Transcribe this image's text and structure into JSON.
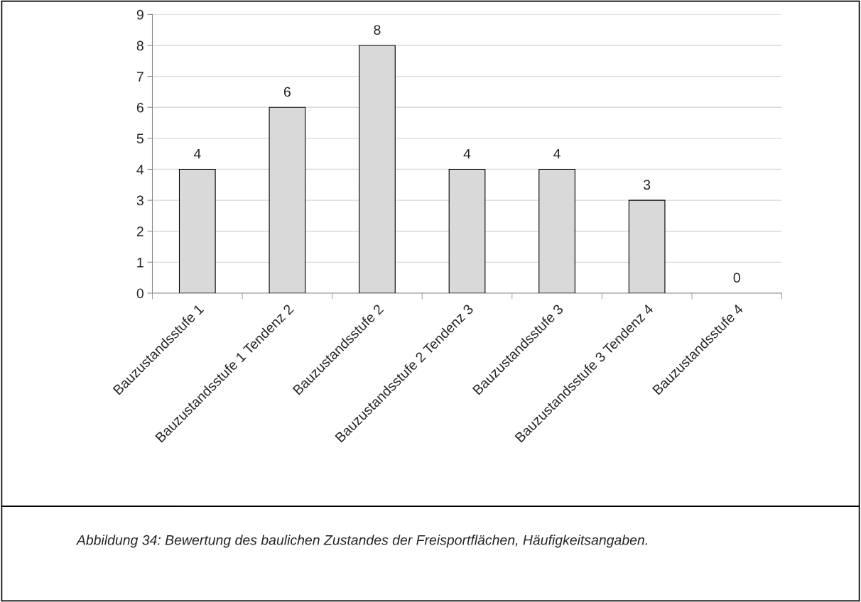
{
  "chart_data": {
    "type": "bar",
    "categories": [
      "Bauzustandsstufe 1",
      "Bauzustandsstufe 1 Tendenz 2",
      "Bauzustandsstufe 2",
      "Bauzustandsstufe 2 Tendenz 3",
      "Bauzustandsstufe 3",
      "Bauzustandsstufe 3 Tendenz 4",
      "Bauzustandsstufe 4"
    ],
    "values": [
      4,
      6,
      8,
      4,
      4,
      3,
      0
    ],
    "color": "#d9d9d9",
    "ylim": [
      0,
      9
    ],
    "yticks": [
      0,
      1,
      2,
      3,
      4,
      5,
      6,
      7,
      8,
      9
    ],
    "grid": "y",
    "data_labels": true,
    "annotations": [
      "Abbildung 34: Bewertung des baulichen Zustandes der Freisportflächen, Häufigkeitsangaben."
    ]
  }
}
